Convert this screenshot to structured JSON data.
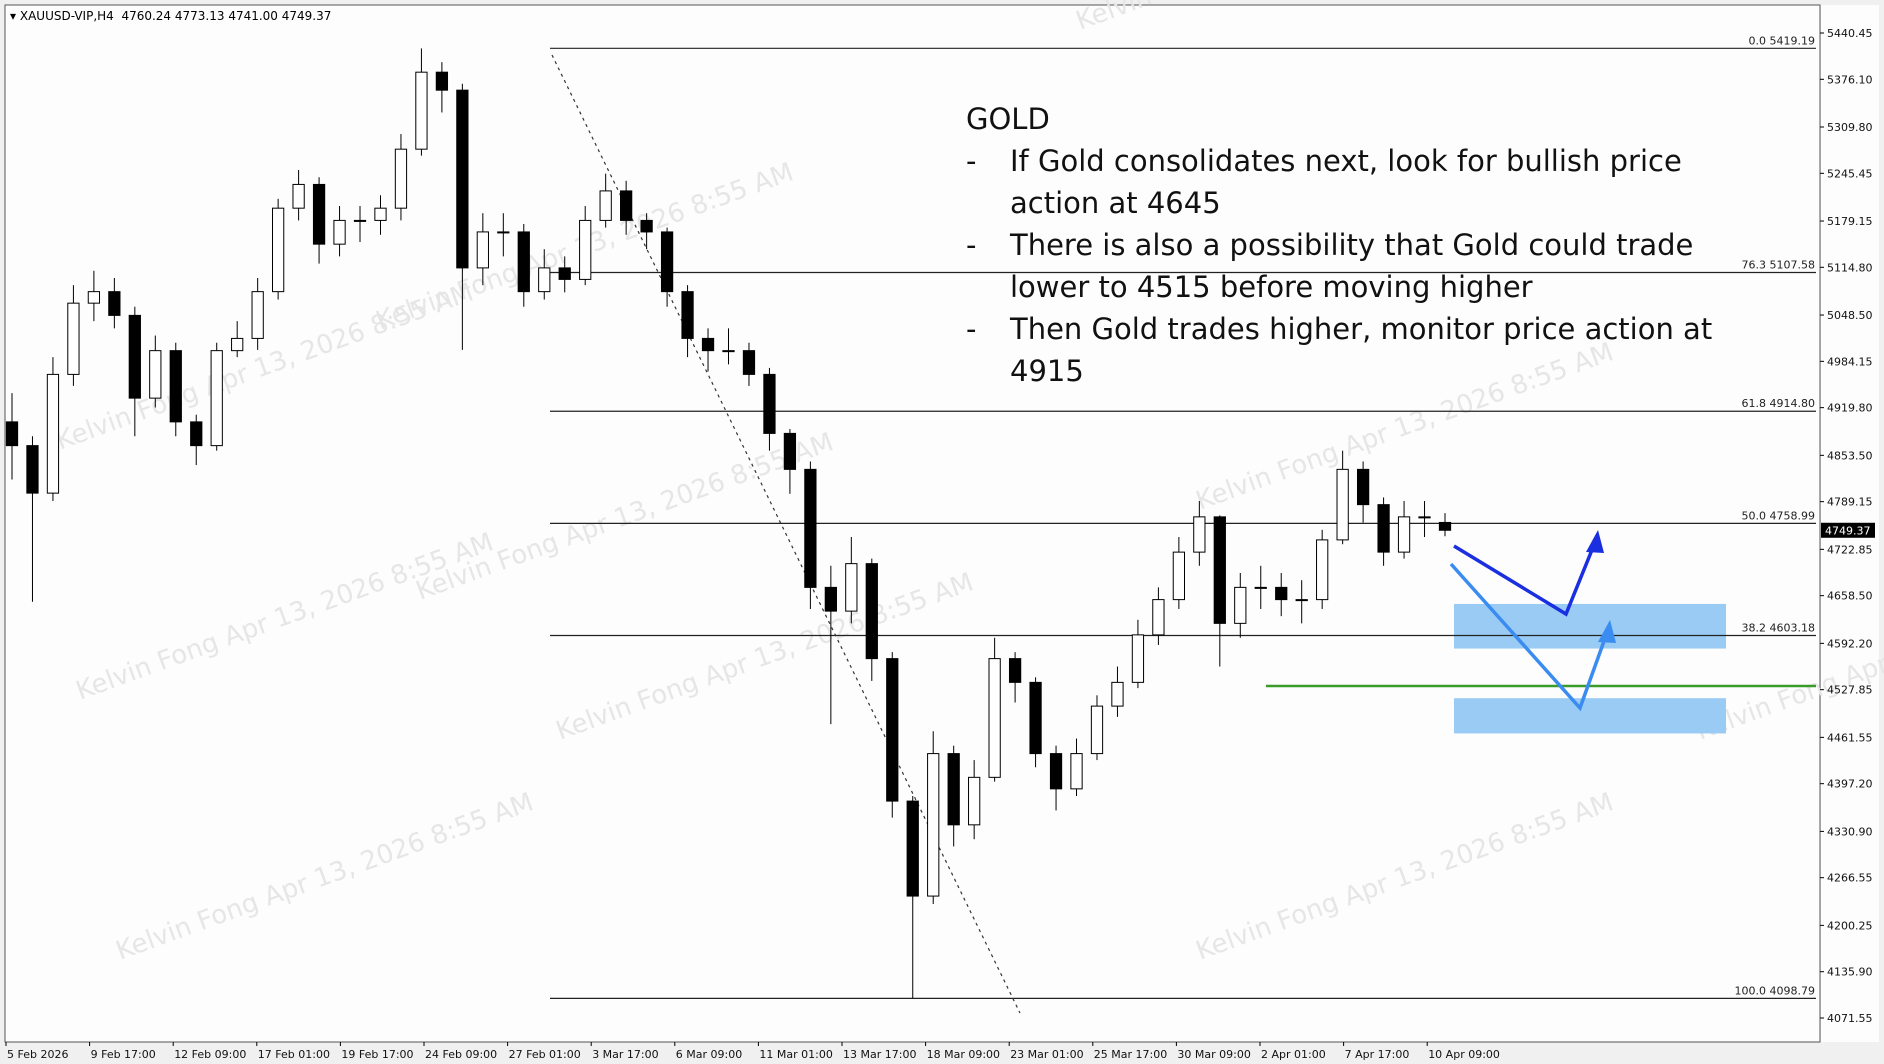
{
  "header": {
    "symbol_timeframe": "XAUUSD-VIP,H4",
    "ohlc": "4760.24 4773.13 4741.00 4749.37"
  },
  "annotation": {
    "title": "GOLD",
    "bullets": [
      "If Gold consolidates next, look for bullish price action at 4645",
      "There is also a possibility that Gold could trade lower to 4515 before moving higher",
      "Then Gold trades higher, monitor price action at 4915"
    ]
  },
  "watermark": "Kelvin Fong Apr 13, 2026 8:55 AM",
  "colors": {
    "background": "#fdfdfd",
    "candle": "#000000",
    "zone": "#99cbf5",
    "level_line": "#3a9a2a",
    "arrow_dark": "#1a2fe0",
    "arrow_light": "#3b8cf0"
  },
  "chart_data": {
    "type": "candlestick",
    "ylim": [
      4071.55,
      5440.45
    ],
    "current_price": "4749.37",
    "y_ticks": [
      "5440.45",
      "5376.10",
      "5309.80",
      "5245.45",
      "5179.15",
      "5114.80",
      "5048.50",
      "4984.15",
      "4919.80",
      "4853.50",
      "4789.15",
      "4722.85",
      "4658.50",
      "4592.20",
      "4527.85",
      "4461.55",
      "4397.20",
      "4330.90",
      "4266.55",
      "4200.25",
      "4135.90",
      "4071.55"
    ],
    "x_ticks": [
      "5 Feb 2026",
      "9 Feb 17:00",
      "12 Feb 09:00",
      "17 Feb 01:00",
      "19 Feb 17:00",
      "24 Feb 09:00",
      "27 Feb 01:00",
      "3 Mar 17:00",
      "6 Mar 09:00",
      "11 Mar 01:00",
      "13 Mar 17:00",
      "18 Mar 09:00",
      "23 Mar 01:00",
      "25 Mar 17:00",
      "30 Mar 09:00",
      "2 Apr 01:00",
      "7 Apr 17:00",
      "10 Apr 09:00"
    ],
    "fibonacci": [
      {
        "level": "0.0",
        "price": "5419.19"
      },
      {
        "level": "76.3",
        "price": "5107.58"
      },
      {
        "level": "61.8",
        "price": "4914.80"
      },
      {
        "level": "50.0",
        "price": "4758.99"
      },
      {
        "level": "38.2",
        "price": "4603.18"
      },
      {
        "level": "100.0",
        "price": "4098.79"
      }
    ],
    "zones": [
      {
        "from": 4585,
        "to": 4647
      },
      {
        "from": 4467,
        "to": 4516
      }
    ],
    "horizontal_level": 4533,
    "candles": [
      [
        4900,
        4940,
        4820,
        4867
      ],
      [
        4867,
        4880,
        4650,
        4801
      ],
      [
        4801,
        4990,
        4790,
        4966
      ],
      [
        4966,
        5090,
        4950,
        5065
      ],
      [
        5065,
        5110,
        5040,
        5081
      ],
      [
        5081,
        5100,
        5030,
        5048
      ],
      [
        5048,
        5060,
        4880,
        4933
      ],
      [
        4933,
        5020,
        4920,
        4999
      ],
      [
        4999,
        5010,
        4880,
        4900
      ],
      [
        4900,
        4910,
        4840,
        4867
      ],
      [
        4867,
        5010,
        4860,
        4999
      ],
      [
        4999,
        5040,
        4990,
        5016
      ],
      [
        5016,
        5100,
        5000,
        5081
      ],
      [
        5081,
        5210,
        5070,
        5197
      ],
      [
        5197,
        5250,
        5180,
        5230
      ],
      [
        5230,
        5240,
        5120,
        5147
      ],
      [
        5147,
        5200,
        5130,
        5180
      ],
      [
        5180,
        5200,
        5150,
        5180
      ],
      [
        5180,
        5215,
        5160,
        5197
      ],
      [
        5197,
        5300,
        5180,
        5279
      ],
      [
        5279,
        5419,
        5270,
        5386
      ],
      [
        5386,
        5400,
        5330,
        5361
      ],
      [
        5361,
        5370,
        5000,
        5114
      ],
      [
        5114,
        5190,
        5090,
        5164
      ],
      [
        5164,
        5190,
        5130,
        5164
      ],
      [
        5164,
        5175,
        5060,
        5081
      ],
      [
        5081,
        5140,
        5070,
        5114
      ],
      [
        5114,
        5130,
        5080,
        5098
      ],
      [
        5098,
        5200,
        5090,
        5180
      ],
      [
        5180,
        5245,
        5170,
        5221
      ],
      [
        5221,
        5235,
        5160,
        5180
      ],
      [
        5180,
        5190,
        5140,
        5164
      ],
      [
        5164,
        5170,
        5060,
        5081
      ],
      [
        5081,
        5090,
        4990,
        5016
      ],
      [
        5016,
        5030,
        4970,
        4999
      ],
      [
        4999,
        5030,
        4980,
        4999
      ],
      [
        4999,
        5010,
        4950,
        4966
      ],
      [
        4966,
        4975,
        4860,
        4884
      ],
      [
        4884,
        4890,
        4800,
        4834
      ],
      [
        4834,
        4845,
        4640,
        4670
      ],
      [
        4670,
        4700,
        4480,
        4637
      ],
      [
        4637,
        4740,
        4620,
        4703
      ],
      [
        4703,
        4710,
        4540,
        4571
      ],
      [
        4571,
        4580,
        4350,
        4373
      ],
      [
        4373,
        4380,
        4099,
        4241
      ],
      [
        4241,
        4470,
        4230,
        4439
      ],
      [
        4439,
        4450,
        4310,
        4340
      ],
      [
        4340,
        4430,
        4320,
        4406
      ],
      [
        4406,
        4600,
        4400,
        4571
      ],
      [
        4571,
        4580,
        4510,
        4538
      ],
      [
        4538,
        4545,
        4420,
        4439
      ],
      [
        4439,
        4450,
        4360,
        4390
      ],
      [
        4390,
        4460,
        4380,
        4439
      ],
      [
        4439,
        4520,
        4430,
        4505
      ],
      [
        4505,
        4560,
        4490,
        4538
      ],
      [
        4538,
        4625,
        4530,
        4604
      ],
      [
        4604,
        4670,
        4590,
        4653
      ],
      [
        4653,
        4740,
        4640,
        4719
      ],
      [
        4719,
        4790,
        4700,
        4768
      ],
      [
        4768,
        4770,
        4560,
        4620
      ],
      [
        4620,
        4690,
        4600,
        4670
      ],
      [
        4670,
        4700,
        4640,
        4670
      ],
      [
        4670,
        4690,
        4630,
        4653
      ],
      [
        4653,
        4680,
        4620,
        4653
      ],
      [
        4653,
        4750,
        4640,
        4736
      ],
      [
        4736,
        4860,
        4730,
        4834
      ],
      [
        4834,
        4845,
        4760,
        4785
      ],
      [
        4785,
        4795,
        4700,
        4719
      ],
      [
        4719,
        4790,
        4710,
        4768
      ],
      [
        4768,
        4790,
        4740,
        4768
      ],
      [
        4760.24,
        4773.13,
        4741.0,
        4749.37
      ]
    ]
  }
}
